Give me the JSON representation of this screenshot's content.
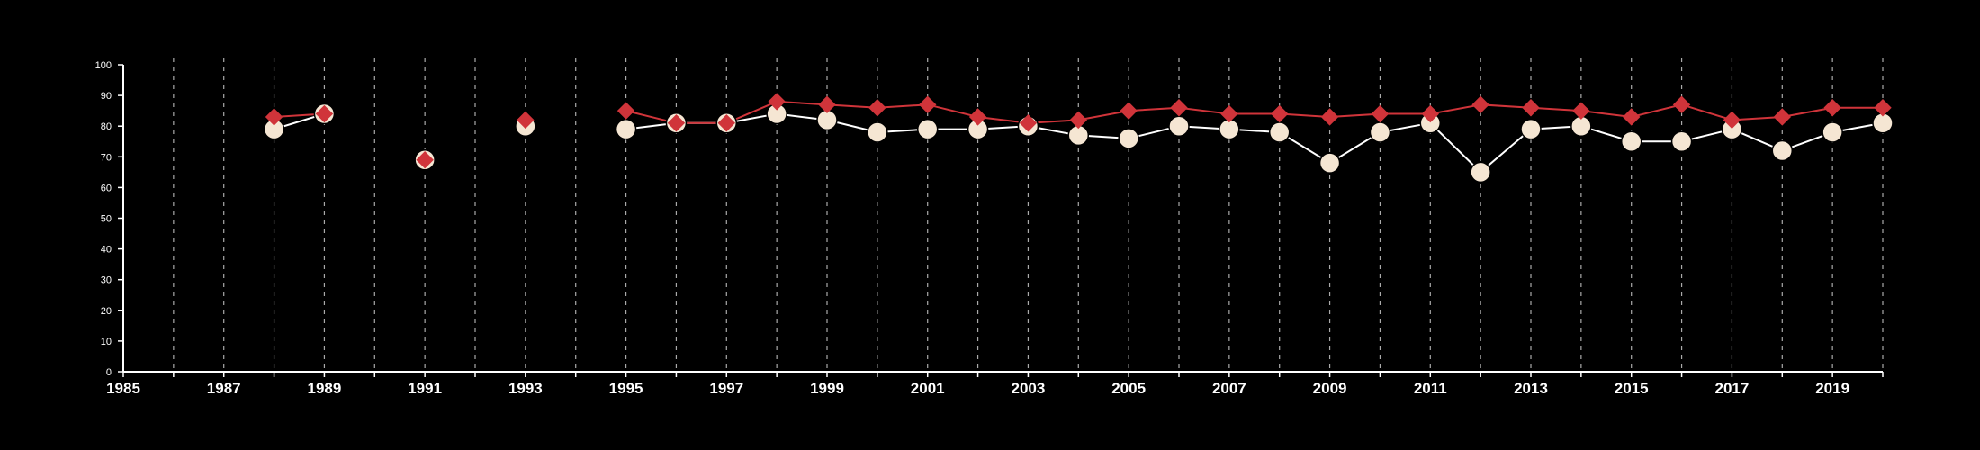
{
  "chart_data": {
    "type": "line",
    "title": "",
    "xlabel": "",
    "ylabel": "",
    "xlim": [
      1985,
      2020
    ],
    "ylim": [
      0,
      100
    ],
    "x_ticks": [
      1985,
      1987,
      1989,
      1991,
      1993,
      1995,
      1997,
      1999,
      2001,
      2003,
      2005,
      2007,
      2009,
      2011,
      2013,
      2015,
      2017,
      2019
    ],
    "x_tick_labels": [
      "1985",
      "1987",
      "1989",
      "1991",
      "1993",
      "1995",
      "1997",
      "1999",
      "2001",
      "2003",
      "2005",
      "2007",
      "2009",
      "2011",
      "2013",
      "2015",
      "2017",
      "2019"
    ],
    "y_ticks": [
      0,
      10,
      20,
      30,
      40,
      50,
      60,
      70,
      80,
      90,
      100
    ],
    "y_tick_labels": [
      "0",
      "10",
      "20",
      "30",
      "40",
      "50",
      "60",
      "70",
      "80",
      "90",
      "100"
    ],
    "grid": "vertical-dashed",
    "series": [
      {
        "marker": "circle",
        "color": "#f5e6d3",
        "line_color": "#ffffff",
        "points": [
          {
            "x": 1988,
            "y": 79
          },
          {
            "x": 1989,
            "y": 84
          },
          {
            "x": 1991,
            "y": 69
          },
          {
            "x": 1993,
            "y": 80
          },
          {
            "x": 1995,
            "y": 79
          },
          {
            "x": 1996,
            "y": 81
          },
          {
            "x": 1997,
            "y": 81
          },
          {
            "x": 1998,
            "y": 84
          },
          {
            "x": 1999,
            "y": 82
          },
          {
            "x": 2000,
            "y": 78
          },
          {
            "x": 2001,
            "y": 79
          },
          {
            "x": 2002,
            "y": 79
          },
          {
            "x": 2003,
            "y": 80
          },
          {
            "x": 2004,
            "y": 77
          },
          {
            "x": 2005,
            "y": 76
          },
          {
            "x": 2006,
            "y": 80
          },
          {
            "x": 2007,
            "y": 79
          },
          {
            "x": 2008,
            "y": 78
          },
          {
            "x": 2009,
            "y": 68
          },
          {
            "x": 2010,
            "y": 78
          },
          {
            "x": 2011,
            "y": 81
          },
          {
            "x": 2012,
            "y": 65
          },
          {
            "x": 2013,
            "y": 79
          },
          {
            "x": 2014,
            "y": 80
          },
          {
            "x": 2015,
            "y": 75
          },
          {
            "x": 2016,
            "y": 75
          },
          {
            "x": 2017,
            "y": 79
          },
          {
            "x": 2018,
            "y": 72
          },
          {
            "x": 2019,
            "y": 78
          },
          {
            "x": 2020,
            "y": 81
          }
        ]
      },
      {
        "marker": "diamond",
        "color": "#d0343a",
        "line_color": "#d0343a",
        "points": [
          {
            "x": 1988,
            "y": 83
          },
          {
            "x": 1989,
            "y": 84
          },
          {
            "x": 1991,
            "y": 69
          },
          {
            "x": 1993,
            "y": 82
          },
          {
            "x": 1995,
            "y": 85
          },
          {
            "x": 1996,
            "y": 81
          },
          {
            "x": 1997,
            "y": 81
          },
          {
            "x": 1998,
            "y": 88
          },
          {
            "x": 1999,
            "y": 87
          },
          {
            "x": 2000,
            "y": 86
          },
          {
            "x": 2001,
            "y": 87
          },
          {
            "x": 2002,
            "y": 83
          },
          {
            "x": 2003,
            "y": 81
          },
          {
            "x": 2004,
            "y": 82
          },
          {
            "x": 2005,
            "y": 85
          },
          {
            "x": 2006,
            "y": 86
          },
          {
            "x": 2007,
            "y": 84
          },
          {
            "x": 2008,
            "y": 84
          },
          {
            "x": 2009,
            "y": 83
          },
          {
            "x": 2010,
            "y": 84
          },
          {
            "x": 2011,
            "y": 84
          },
          {
            "x": 2012,
            "y": 87
          },
          {
            "x": 2013,
            "y": 86
          },
          {
            "x": 2014,
            "y": 85
          },
          {
            "x": 2015,
            "y": 83
          },
          {
            "x": 2016,
            "y": 87
          },
          {
            "x": 2017,
            "y": 82
          },
          {
            "x": 2018,
            "y": 83
          },
          {
            "x": 2019,
            "y": 86
          },
          {
            "x": 2020,
            "y": 86
          }
        ]
      }
    ]
  }
}
